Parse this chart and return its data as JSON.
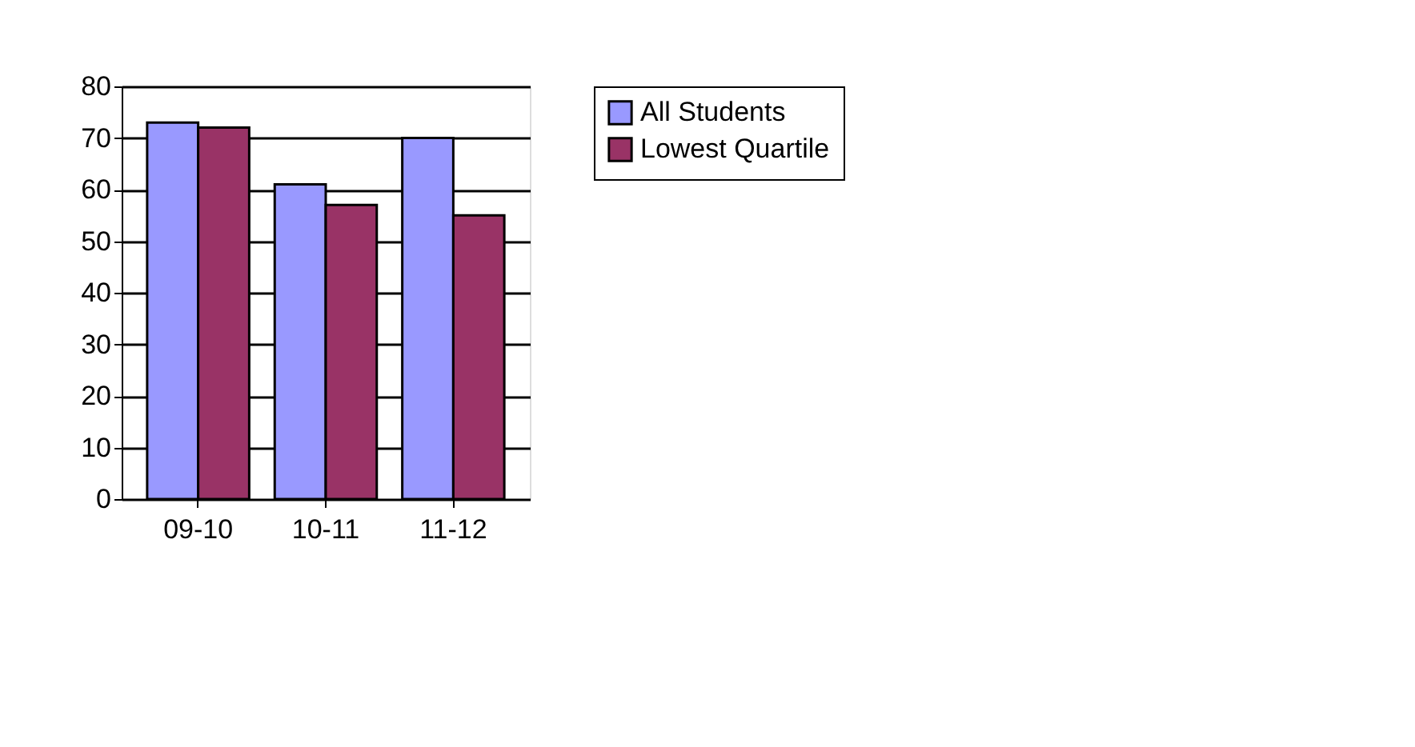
{
  "chart_data": {
    "type": "bar",
    "categories": [
      "09-10",
      "10-11",
      "11-12"
    ],
    "series": [
      {
        "name": "All Students",
        "color": "#9999ff",
        "values": [
          73,
          61,
          70
        ]
      },
      {
        "name": "Lowest Quartile",
        "color": "#993366",
        "values": [
          72,
          57,
          55
        ]
      }
    ],
    "ylim": [
      0,
      80
    ],
    "yticks": [
      0,
      10,
      20,
      30,
      40,
      50,
      60,
      70,
      80
    ],
    "grid": "y",
    "legend": "right"
  }
}
